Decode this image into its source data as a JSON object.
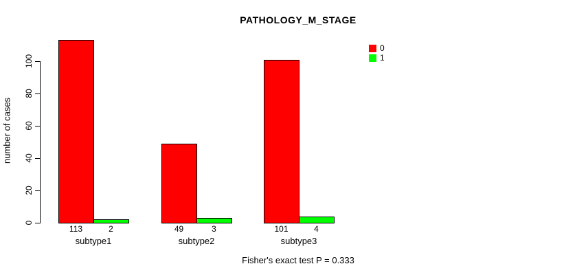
{
  "figure": {
    "background": "#ffffff",
    "text_color": "#000000"
  },
  "chart_data": {
    "type": "bar",
    "title": "PATHOLOGY_M_STAGE",
    "xlabel": "",
    "ylabel": "number of cases",
    "annotation": "Fisher's exact test P = 0.333",
    "categories": [
      "subtype1",
      "subtype2",
      "subtype3"
    ],
    "series": [
      {
        "name": "0",
        "color": "#ff0000",
        "values": [
          113,
          49,
          101
        ]
      },
      {
        "name": "1",
        "color": "#00ff00",
        "values": [
          2,
          3,
          4
        ]
      }
    ],
    "bar_value_labels": [
      [
        "113",
        "2"
      ],
      [
        "49",
        "3"
      ],
      [
        "101",
        "4"
      ]
    ],
    "yticks": [
      0,
      20,
      40,
      60,
      80,
      100
    ],
    "ylim": [
      0,
      113
    ],
    "grid": false,
    "legend_position": "top-right",
    "bar_border_color": "#000000"
  }
}
